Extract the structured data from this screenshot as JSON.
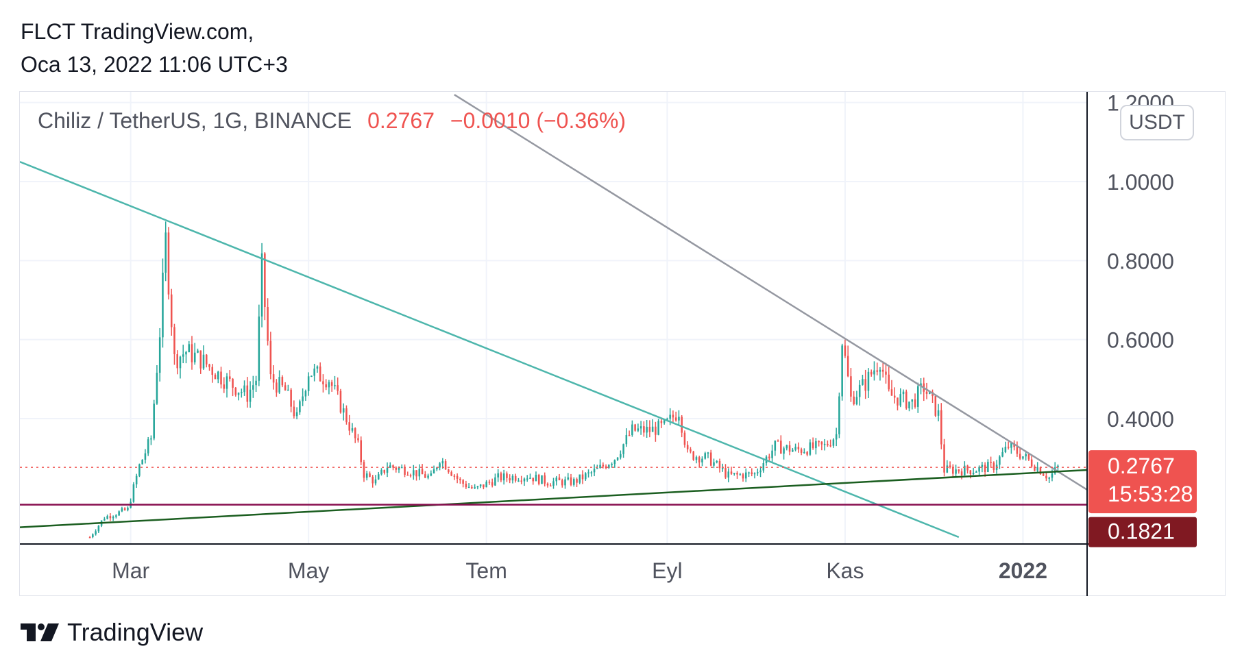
{
  "header": {
    "line1": "FLCT TradingView.com,",
    "line2": "Oca 13, 2022 11:06 UTC+3"
  },
  "legend": {
    "symbol": "Chiliz / TetherUS, 1G, BINANCE",
    "last": "0.2767",
    "change": "−0.0010 (−0.36%)"
  },
  "currency_button": "USDT",
  "footer": {
    "brand": "TradingView",
    "logo_icon": "tradingview-logo-icon"
  },
  "colors": {
    "up": "#26a69a",
    "down": "#ef5350",
    "grid": "#f0f3fa",
    "teal_line": "#4db6ac",
    "gray_line": "#9598a1",
    "green_line": "#1b5e20",
    "support_line": "#880e4f",
    "price_label": "#ef5350",
    "support_label": "#801922"
  },
  "chart_data": {
    "type": "candlestick",
    "title": "Chiliz / TetherUS, 1G, BINANCE",
    "ylim": [
      0.1,
      1.2
    ],
    "y_ticks": [
      {
        "v": 1.2,
        "label": "1.2000"
      },
      {
        "v": 1.0,
        "label": "1.0000"
      },
      {
        "v": 0.8,
        "label": "0.8000"
      },
      {
        "v": 0.6,
        "label": "0.6000"
      },
      {
        "v": 0.4,
        "label": "0.4000"
      }
    ],
    "x_ticks": [
      {
        "date": "2021-03-01",
        "label": "Mar",
        "bold": false
      },
      {
        "date": "2021-05-01",
        "label": "May",
        "bold": false
      },
      {
        "date": "2021-07-01",
        "label": "Tem",
        "bold": false
      },
      {
        "date": "2021-09-01",
        "label": "Eyl",
        "bold": false
      },
      {
        "date": "2021-11-01",
        "label": "Kas",
        "bold": false
      },
      {
        "date": "2022-01-01",
        "label": "2022",
        "bold": true
      }
    ],
    "x_range": [
      "2021-01-22",
      "2022-01-23"
    ],
    "last_price": {
      "value": 0.2767,
      "label": "0.2767",
      "countdown": "15:53:28"
    },
    "support": {
      "value": 0.1821,
      "label": "0.1821"
    },
    "trend_lines": [
      {
        "name": "teal-descending-line",
        "color": "teal_line",
        "points": [
          [
            "2021-01-22",
            1.05
          ],
          [
            "2021-12-10",
            0.1
          ]
        ]
      },
      {
        "name": "gray-descending-line",
        "color": "gray_line",
        "points": [
          [
            "2021-06-20",
            1.22
          ],
          [
            "2022-01-23",
            0.22
          ]
        ]
      },
      {
        "name": "green-ascending-line",
        "color": "green_line",
        "points": [
          [
            "2021-01-22",
            0.125
          ],
          [
            "2022-01-23",
            0.27
          ]
        ]
      }
    ],
    "anchors": [
      [
        "2021-02-15",
        0.1
      ],
      [
        "2021-02-20",
        0.15
      ],
      [
        "2021-02-28",
        0.17
      ],
      [
        "2021-03-04",
        0.28
      ],
      [
        "2021-03-08",
        0.35
      ],
      [
        "2021-03-11",
        0.62
      ],
      [
        "2021-03-13",
        0.85
      ],
      [
        "2021-03-16",
        0.55
      ],
      [
        "2021-03-20",
        0.57
      ],
      [
        "2021-03-25",
        0.55
      ],
      [
        "2021-04-02",
        0.5
      ],
      [
        "2021-04-10",
        0.46
      ],
      [
        "2021-04-13",
        0.5
      ],
      [
        "2021-04-15",
        0.78
      ],
      [
        "2021-04-18",
        0.5
      ],
      [
        "2021-04-23",
        0.47
      ],
      [
        "2021-04-27",
        0.4
      ],
      [
        "2021-05-01",
        0.52
      ],
      [
        "2021-05-08",
        0.5
      ],
      [
        "2021-05-14",
        0.4
      ],
      [
        "2021-05-18",
        0.33
      ],
      [
        "2021-05-20",
        0.26
      ],
      [
        "2021-05-24",
        0.24
      ],
      [
        "2021-05-28",
        0.28
      ],
      [
        "2021-06-04",
        0.27
      ],
      [
        "2021-06-12",
        0.25
      ],
      [
        "2021-06-15",
        0.3
      ],
      [
        "2021-06-22",
        0.24
      ],
      [
        "2021-06-27",
        0.22
      ],
      [
        "2021-07-05",
        0.25
      ],
      [
        "2021-07-15",
        0.255
      ],
      [
        "2021-07-22",
        0.24
      ],
      [
        "2021-07-31",
        0.24
      ],
      [
        "2021-08-08",
        0.27
      ],
      [
        "2021-08-14",
        0.3
      ],
      [
        "2021-08-20",
        0.37
      ],
      [
        "2021-08-26",
        0.37
      ],
      [
        "2021-08-31",
        0.38
      ],
      [
        "2021-09-05",
        0.42
      ],
      [
        "2021-09-08",
        0.31
      ],
      [
        "2021-09-15",
        0.3
      ],
      [
        "2021-09-22",
        0.255
      ],
      [
        "2021-10-01",
        0.26
      ],
      [
        "2021-10-08",
        0.33
      ],
      [
        "2021-10-15",
        0.32
      ],
      [
        "2021-10-25",
        0.33
      ],
      [
        "2021-10-29",
        0.36
      ],
      [
        "2021-10-31",
        0.6
      ],
      [
        "2021-11-03",
        0.45
      ],
      [
        "2021-11-08",
        0.49
      ],
      [
        "2021-11-13",
        0.55
      ],
      [
        "2021-11-16",
        0.46
      ],
      [
        "2021-11-24",
        0.44
      ],
      [
        "2021-11-28",
        0.48
      ],
      [
        "2021-12-03",
        0.41
      ],
      [
        "2021-12-05",
        0.27
      ],
      [
        "2021-12-15",
        0.27
      ],
      [
        "2021-12-22",
        0.28
      ],
      [
        "2021-12-27",
        0.33
      ],
      [
        "2022-01-02",
        0.3
      ],
      [
        "2022-01-07",
        0.27
      ],
      [
        "2022-01-10",
        0.25
      ],
      [
        "2022-01-13",
        0.2767
      ]
    ]
  }
}
